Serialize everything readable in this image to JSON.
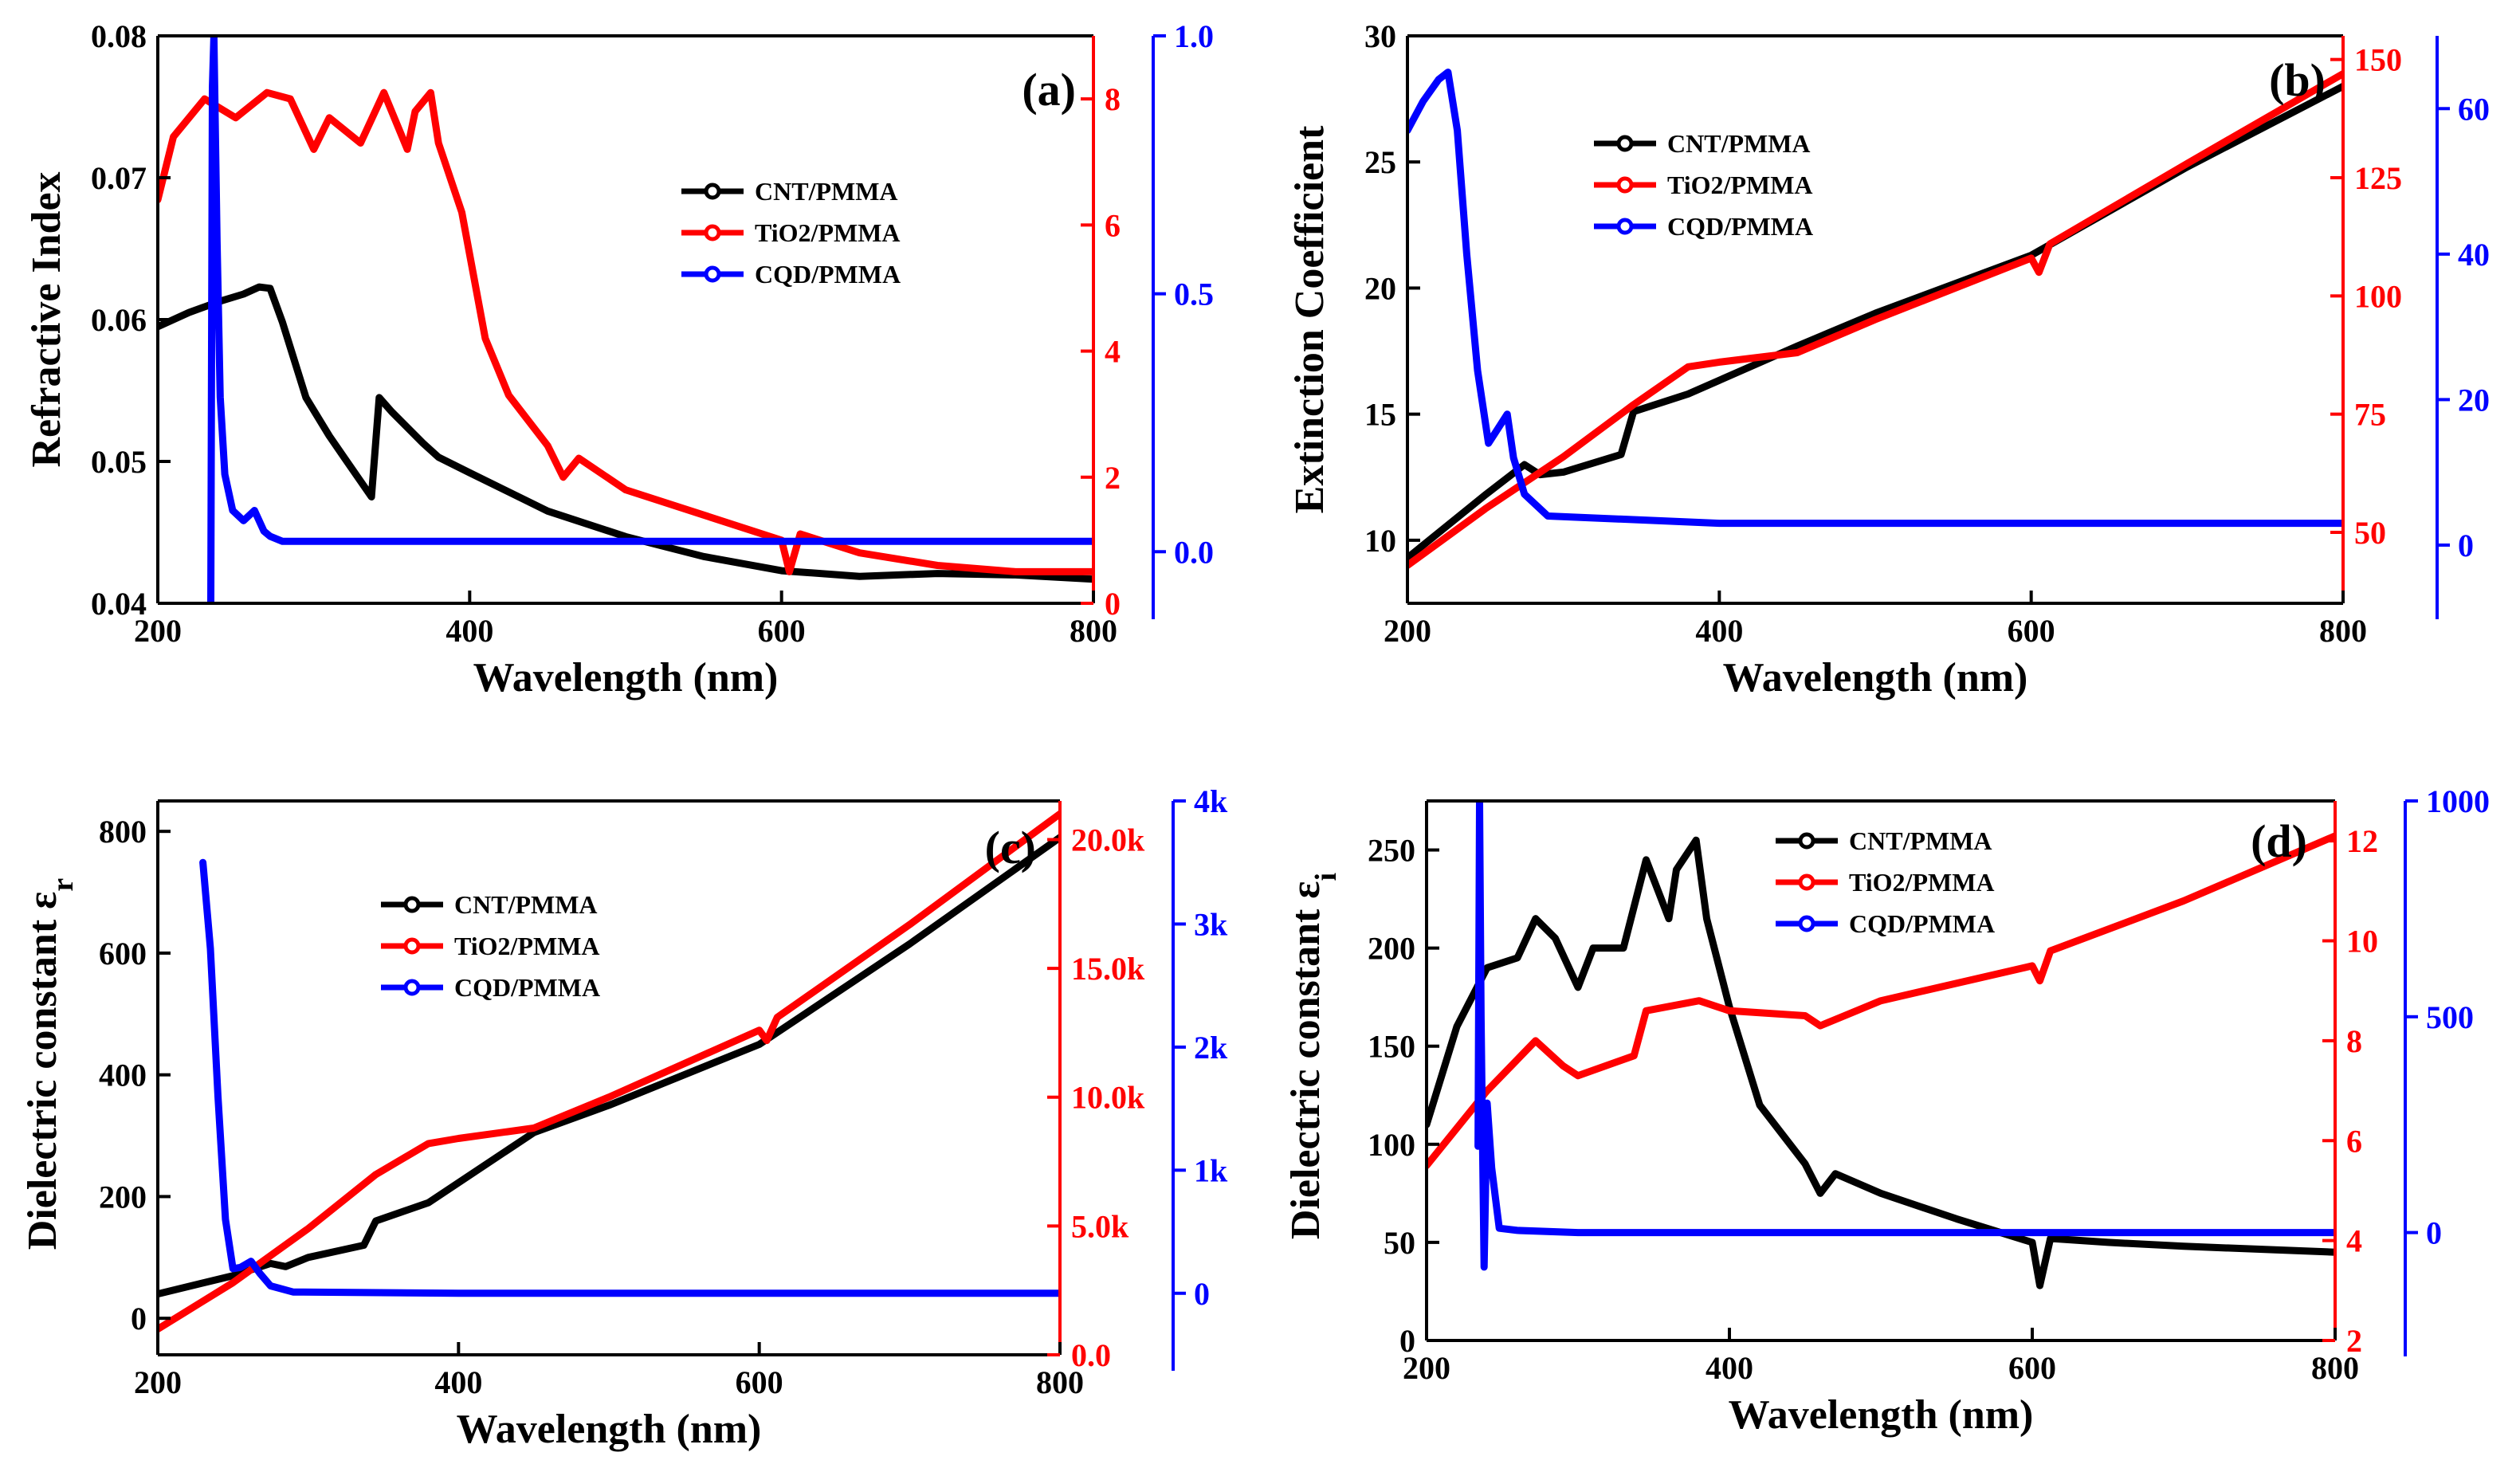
{
  "colors": {
    "CNT/PMMA": "#000000",
    "TiO2/PMMA": "#ff0000",
    "CQD/PMMA": "#0000ff"
  },
  "chart_data": [
    {
      "panel": "(a)",
      "type": "line",
      "title": "",
      "xlabel": "Wavelength (nm)",
      "ylabel": "Refractive Index",
      "xlim": [
        200,
        800
      ],
      "xticks": [
        "200",
        "400",
        "600",
        "800"
      ],
      "axes": [
        {
          "key": "left",
          "color": "#000000",
          "range": [
            0.04,
            0.08
          ],
          "ticks": [
            "0.04",
            "0.05",
            "0.06",
            "0.07",
            "0.08"
          ]
        },
        {
          "key": "r1",
          "color": "#ff0000",
          "range": [
            0,
            9
          ],
          "ticks": [
            "0",
            "2",
            "4",
            "6",
            "8"
          ]
        },
        {
          "key": "r2",
          "color": "#0000ff",
          "range": [
            -0.1,
            1.0
          ],
          "ticks": [
            "0.0",
            "0.5",
            "1.0"
          ]
        }
      ],
      "legend": [
        "CNT/PMMA",
        "TiO2/PMMA",
        "CQD/PMMA"
      ],
      "series": [
        {
          "name": "CNT/PMMA",
          "axis": "left",
          "color": "#000000",
          "x": [
            200,
            220,
            240,
            255,
            265,
            272,
            280,
            295,
            310,
            320,
            337,
            342,
            350,
            370,
            380,
            400,
            450,
            500,
            550,
            600,
            650,
            700,
            750,
            800
          ],
          "y": [
            0.0595,
            0.0605,
            0.0613,
            0.0618,
            0.0623,
            0.0622,
            0.0598,
            0.0545,
            0.0518,
            0.0502,
            0.0475,
            0.0545,
            0.0535,
            0.0513,
            0.0503,
            0.0492,
            0.0465,
            0.0447,
            0.0433,
            0.0423,
            0.0419,
            0.0421,
            0.042,
            0.0417
          ]
        },
        {
          "name": "TiO2/PMMA",
          "axis": "r1",
          "color": "#ff0000",
          "x": [
            200,
            210,
            230,
            250,
            270,
            285,
            300,
            310,
            330,
            345,
            360,
            365,
            375,
            380,
            395,
            410,
            425,
            450,
            460,
            470,
            500,
            550,
            600,
            605,
            612,
            650,
            700,
            750,
            800
          ],
          "y": [
            6.4,
            7.4,
            8.0,
            7.7,
            8.1,
            8.0,
            7.2,
            7.7,
            7.3,
            8.1,
            7.2,
            7.8,
            8.1,
            7.3,
            6.2,
            4.2,
            3.3,
            2.5,
            2.0,
            2.3,
            1.8,
            1.4,
            1.0,
            0.5,
            1.1,
            0.8,
            0.6,
            0.5,
            0.5
          ]
        },
        {
          "name": "CQD/PMMA",
          "axis": "r2",
          "color": "#0000ff",
          "x": [
            234,
            235,
            236,
            238,
            240,
            243,
            248,
            255,
            262,
            268,
            272,
            280,
            300,
            400,
            600,
            800
          ],
          "y": [
            -0.1,
            0.9,
            1.0,
            0.6,
            0.3,
            0.15,
            0.08,
            0.06,
            0.08,
            0.04,
            0.03,
            0.02,
            0.02,
            0.02,
            0.02,
            0.02
          ]
        }
      ]
    },
    {
      "panel": "(b)",
      "type": "line",
      "title": "",
      "xlabel": "Wavelength (nm)",
      "ylabel": "Extinction Coefficient",
      "xlim": [
        200,
        800
      ],
      "xticks": [
        "200",
        "400",
        "600",
        "800"
      ],
      "axes": [
        {
          "key": "left",
          "color": "#000000",
          "range": [
            7.5,
            30
          ],
          "ticks": [
            "10",
            "15",
            "20",
            "25",
            "30"
          ]
        },
        {
          "key": "r1",
          "color": "#ff0000",
          "range": [
            35,
            155
          ],
          "ticks": [
            "50",
            "75",
            "100",
            "125",
            "150"
          ]
        },
        {
          "key": "r2",
          "color": "#0000ff",
          "range": [
            -8,
            70
          ],
          "ticks": [
            "0",
            "20",
            "40",
            "60"
          ]
        }
      ],
      "legend": [
        "CNT/PMMA",
        "TiO2/PMMA",
        "CQD/PMMA"
      ],
      "series": [
        {
          "name": "CNT/PMMA",
          "axis": "left",
          "color": "#000000",
          "x": [
            200,
            250,
            275,
            285,
            300,
            337,
            345,
            380,
            450,
            500,
            600,
            700,
            800
          ],
          "y": [
            9.3,
            11.8,
            13.0,
            12.6,
            12.7,
            13.4,
            15.1,
            15.8,
            17.7,
            19.0,
            21.3,
            24.8,
            28.0
          ]
        },
        {
          "name": "TiO2/PMMA",
          "axis": "r1",
          "color": "#ff0000",
          "x": [
            200,
            250,
            300,
            345,
            380,
            400,
            450,
            500,
            600,
            605,
            612,
            700,
            800
          ],
          "y": [
            43,
            55,
            66,
            77,
            85,
            86,
            88,
            95,
            108,
            105,
            111,
            128,
            147
          ]
        },
        {
          "name": "CQD/PMMA",
          "axis": "r2",
          "color": "#0000ff",
          "x": [
            200,
            210,
            220,
            226,
            232,
            238,
            245,
            252,
            258,
            264,
            268,
            275,
            290,
            400,
            600,
            800
          ],
          "y": [
            57,
            61,
            64,
            65,
            57,
            40,
            24,
            14,
            16,
            18,
            12,
            7,
            4,
            3,
            3,
            3
          ]
        }
      ]
    },
    {
      "panel": "(c)",
      "type": "line",
      "title": "",
      "xlabel": "Wavelength (nm)",
      "ylabel": "Dielectric constant εr",
      "ylabel_main": "Dielectric constant ε",
      "ylabel_sub": "r",
      "xlim": [
        200,
        800
      ],
      "xticks": [
        "200",
        "400",
        "600",
        "800"
      ],
      "axes": [
        {
          "key": "left",
          "color": "#000000",
          "range": [
            -60,
            850
          ],
          "ticks": [
            "0",
            "200",
            "400",
            "600",
            "800"
          ]
        },
        {
          "key": "r1",
          "color": "#ff0000",
          "range": [
            0,
            21500
          ],
          "ticks": [
            "0.0",
            "5.0k",
            "10.0k",
            "15.0k",
            "20.0k"
          ]
        },
        {
          "key": "r2",
          "color": "#0000ff",
          "range": [
            -500,
            4000
          ],
          "ticks": [
            "0",
            "1k",
            "2k",
            "3k",
            "4k"
          ]
        }
      ],
      "legend": [
        "CNT/PMMA",
        "TiO2/PMMA",
        "CQD/PMMA"
      ],
      "series": [
        {
          "name": "CNT/PMMA",
          "axis": "left",
          "color": "#000000",
          "x": [
            200,
            250,
            275,
            285,
            300,
            337,
            345,
            380,
            450,
            500,
            600,
            700,
            800
          ],
          "y": [
            40,
            70,
            90,
            85,
            100,
            120,
            160,
            190,
            305,
            350,
            450,
            615,
            790
          ]
        },
        {
          "name": "TiO2/PMMA",
          "axis": "r1",
          "color": "#ff0000",
          "x": [
            200,
            250,
            300,
            345,
            380,
            400,
            450,
            500,
            600,
            605,
            612,
            700,
            800
          ],
          "y": [
            1000,
            2800,
            4900,
            7000,
            8200,
            8400,
            8800,
            10000,
            12600,
            12200,
            13100,
            16700,
            21000
          ]
        },
        {
          "name": "CQD/PMMA",
          "axis": "r2",
          "color": "#0000ff",
          "x": [
            230,
            235,
            240,
            245,
            250,
            255,
            262,
            268,
            275,
            290,
            400,
            600,
            800
          ],
          "y": [
            3500,
            2800,
            1600,
            600,
            200,
            210,
            260,
            160,
            60,
            10,
            0,
            0,
            0
          ]
        }
      ]
    },
    {
      "panel": "(d)",
      "type": "line",
      "title": "",
      "xlabel": "Wavelength (nm)",
      "ylabel": "Dielectric constant εi",
      "ylabel_main": "Dielectric constant ε",
      "ylabel_sub": "i",
      "xlim": [
        200,
        800
      ],
      "xticks": [
        "200",
        "400",
        "600",
        "800"
      ],
      "axes": [
        {
          "key": "left",
          "color": "#000000",
          "range": [
            0,
            275
          ],
          "ticks": [
            "0",
            "50",
            "100",
            "150",
            "200",
            "250"
          ]
        },
        {
          "key": "r1",
          "color": "#ff0000",
          "range": [
            2,
            12.8
          ],
          "ticks": [
            "2",
            "4",
            "6",
            "8",
            "10",
            "12"
          ]
        },
        {
          "key": "r2",
          "color": "#0000ff",
          "range": [
            -250,
            1000
          ],
          "ticks": [
            "0",
            "500",
            "1000"
          ]
        }
      ],
      "legend": [
        "CNT/PMMA",
        "TiO2/PMMA",
        "CQD/PMMA"
      ],
      "series": [
        {
          "name": "CNT/PMMA",
          "axis": "left",
          "color": "#000000",
          "x": [
            200,
            220,
            240,
            260,
            272,
            285,
            300,
            310,
            330,
            345,
            360,
            365,
            378,
            385,
            400,
            420,
            450,
            460,
            470,
            500,
            550,
            600,
            605,
            612,
            650,
            700,
            800
          ],
          "y": [
            110,
            160,
            190,
            195,
            215,
            205,
            180,
            200,
            200,
            245,
            215,
            240,
            255,
            215,
            170,
            120,
            90,
            75,
            85,
            75,
            62,
            50,
            28,
            52,
            50,
            48,
            45
          ]
        },
        {
          "name": "TiO2/PMMA",
          "axis": "r1",
          "color": "#ff0000",
          "x": [
            200,
            240,
            272,
            290,
            300,
            337,
            345,
            380,
            400,
            450,
            460,
            500,
            600,
            605,
            612,
            700,
            800
          ],
          "y": [
            5.5,
            7.0,
            8.0,
            7.5,
            7.3,
            7.7,
            8.6,
            8.8,
            8.6,
            8.5,
            8.3,
            8.8,
            9.5,
            9.2,
            9.8,
            10.8,
            12.1
          ]
        },
        {
          "name": "CQD/PMMA",
          "axis": "r2",
          "color": "#0000ff",
          "x": [
            234,
            235,
            236,
            237,
            238,
            240,
            243,
            248,
            260,
            300,
            400,
            600,
            800
          ],
          "y": [
            200,
            1000,
            500,
            200,
            -80,
            300,
            150,
            10,
            5,
            0,
            0,
            0,
            0
          ]
        }
      ]
    }
  ]
}
